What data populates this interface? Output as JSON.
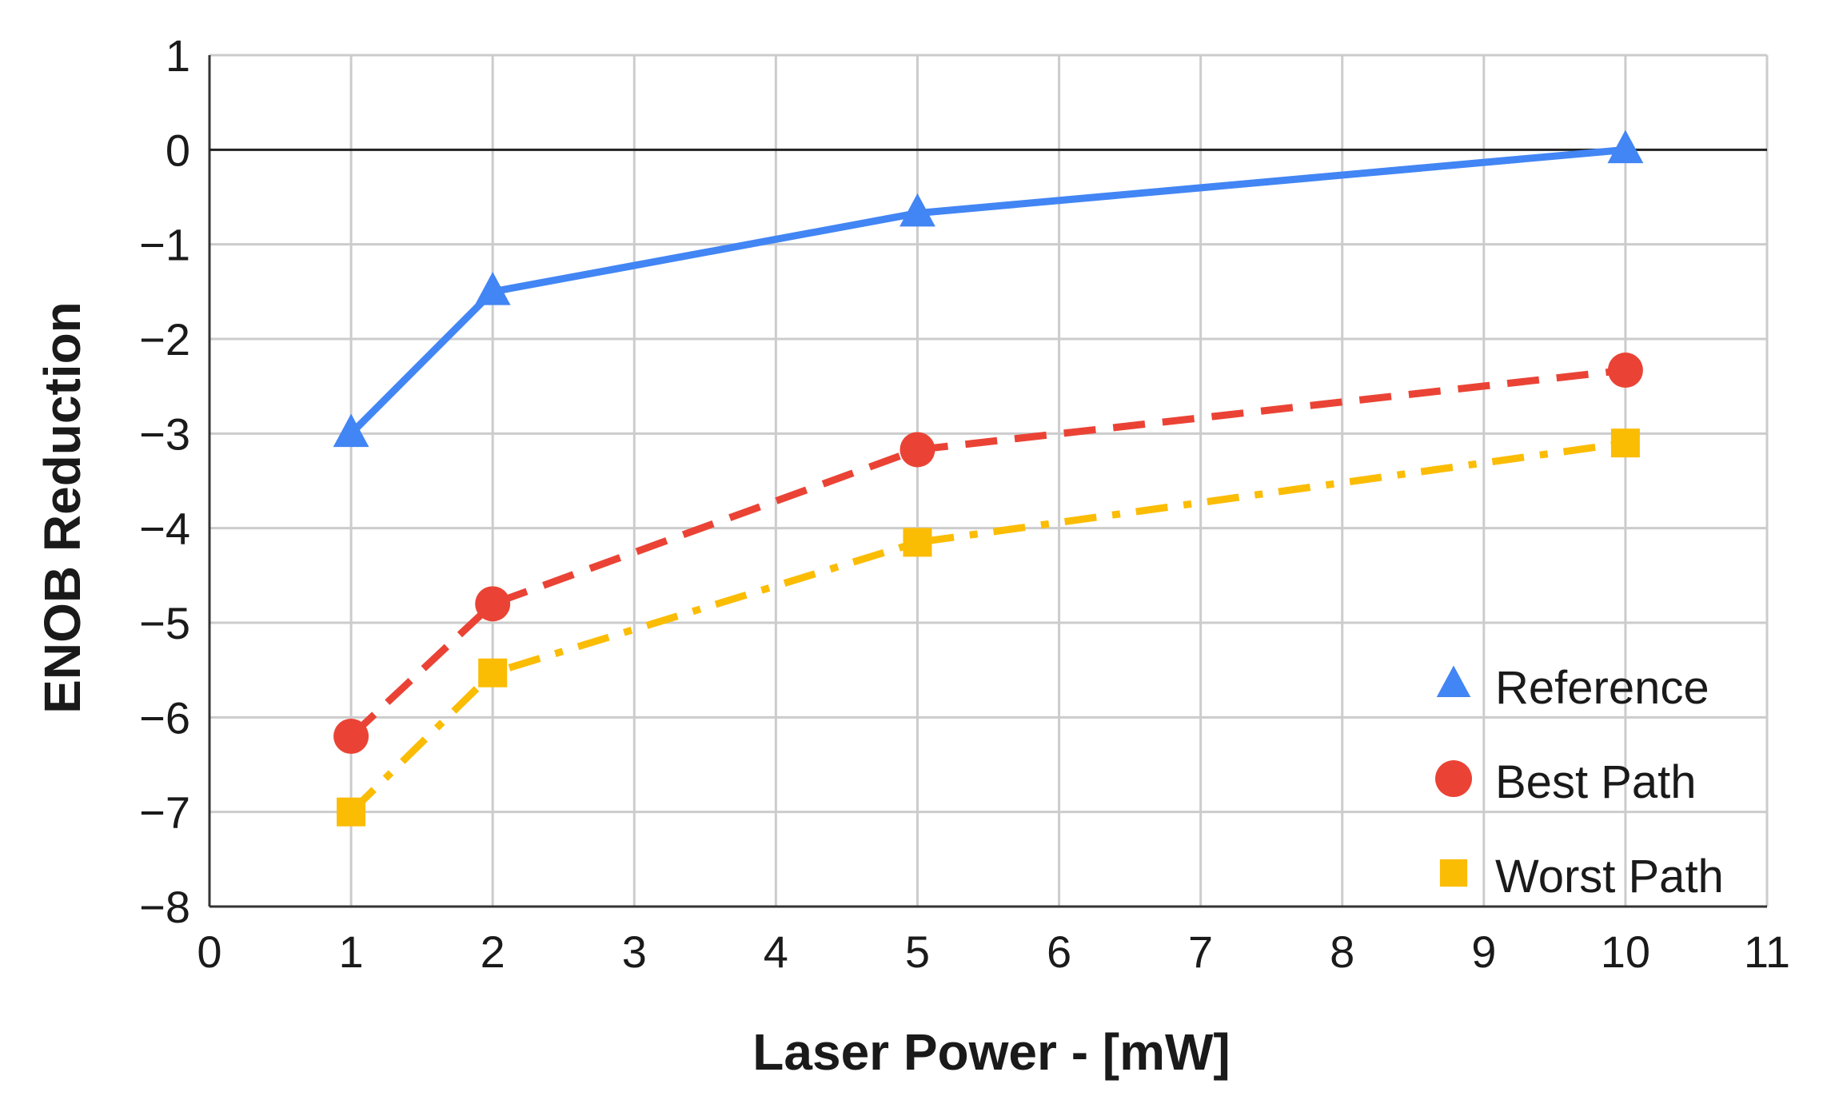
{
  "chart_data": {
    "type": "line",
    "title": "",
    "xlabel": "Laser Power - [mW]",
    "ylabel": "ENOB Reduction",
    "xlim": [
      0,
      11
    ],
    "ylim": [
      -8,
      1
    ],
    "xticks": [
      0,
      1,
      2,
      3,
      4,
      5,
      6,
      7,
      8,
      9,
      10,
      11
    ],
    "yticks": [
      1,
      0,
      -1,
      -2,
      -3,
      -4,
      -5,
      -6,
      -7,
      -8
    ],
    "xtick_labels": [
      "0",
      "1",
      "2",
      "3",
      "4",
      "5",
      "6",
      "7",
      "8",
      "9",
      "10",
      "11"
    ],
    "ytick_labels": [
      "1",
      "0",
      "−1",
      "−2",
      "−3",
      "−4",
      "−5",
      "−6",
      "−7",
      "−8"
    ],
    "grid": true,
    "legend_position": "bottom-right",
    "x_display": [
      1,
      2,
      5,
      10
    ],
    "series": [
      {
        "name": "Reference",
        "color": "#4285f4",
        "marker": "triangle",
        "line": "solid",
        "x": [
          1,
          2,
          5,
          10
        ],
        "y": [
          -3.0,
          -1.5,
          -0.67,
          0.0
        ]
      },
      {
        "name": "Best Path",
        "color": "#ea4335",
        "marker": "circle",
        "line": "dashed",
        "x": [
          1,
          2,
          5,
          10
        ],
        "y": [
          -6.2,
          -4.8,
          -3.17,
          -2.33
        ]
      },
      {
        "name": "Worst Path",
        "color": "#fbbc04",
        "marker": "square",
        "line": "dashdot",
        "x": [
          1,
          2,
          5,
          10
        ],
        "y": [
          -7.0,
          -5.53,
          -4.15,
          -3.1
        ]
      }
    ]
  }
}
